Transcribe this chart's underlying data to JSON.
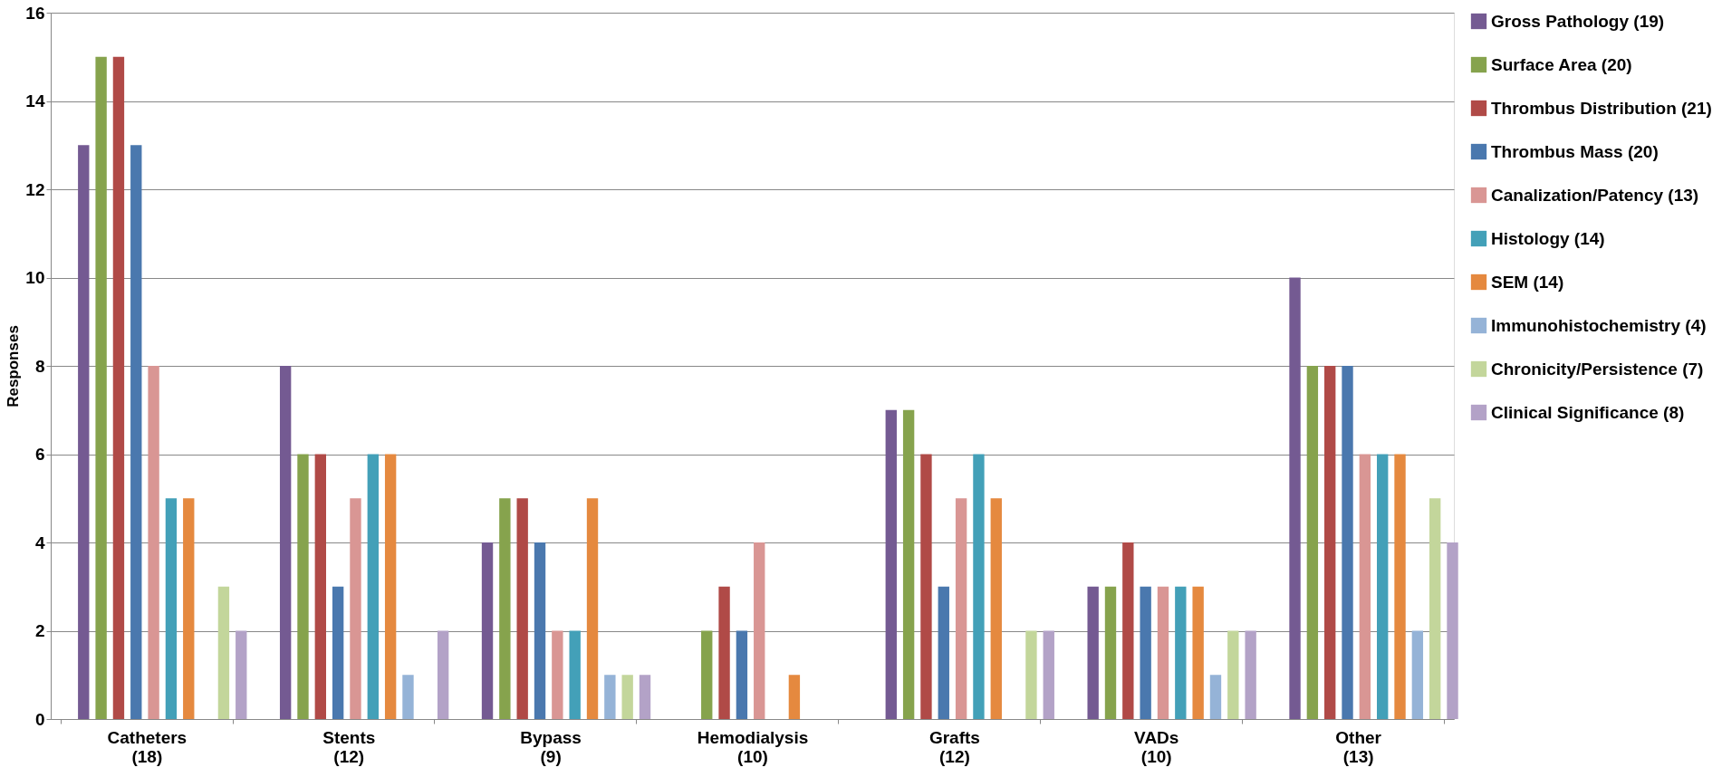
{
  "chart_data": {
    "type": "bar",
    "ylabel": "Responses",
    "categories": [
      "Catheters\n(18)",
      "Stents\n(12)",
      "Bypass\n(9)",
      "Hemodialysis\n(10)",
      "Grafts\n(12)",
      "VADs\n(10)",
      "Other\n(13)"
    ],
    "ylim": [
      0,
      16
    ],
    "yticks": [
      0,
      2,
      4,
      6,
      8,
      10,
      12,
      14,
      16
    ],
    "grid": "y",
    "legend": "right",
    "series": [
      {
        "name": "Gross Pathology (19)",
        "color": "#745a92",
        "values": [
          13,
          8,
          4,
          0,
          7,
          3,
          10
        ]
      },
      {
        "name": "Surface Area (20)",
        "color": "#86a34d",
        "values": [
          15,
          6,
          5,
          2,
          7,
          3,
          8
        ]
      },
      {
        "name": "Thrombus Distribution (21)",
        "color": "#b04a47",
        "values": [
          15,
          6,
          5,
          3,
          6,
          4,
          8
        ]
      },
      {
        "name": "Thrombus Mass (20)",
        "color": "#4a78ae",
        "values": [
          13,
          3,
          4,
          2,
          3,
          3,
          8
        ]
      },
      {
        "name": "Canalization/Patency (13)",
        "color": "#d99694",
        "values": [
          8,
          5,
          2,
          4,
          5,
          3,
          6
        ]
      },
      {
        "name": "Histology (14)",
        "color": "#43a0b8",
        "values": [
          5,
          6,
          2,
          0,
          6,
          3,
          6
        ]
      },
      {
        "name": "SEM (14)",
        "color": "#e5893f",
        "values": [
          5,
          6,
          5,
          1,
          5,
          3,
          6
        ]
      },
      {
        "name": "Immunohistochemistry (4)",
        "color": "#95b3d7",
        "values": [
          0,
          1,
          1,
          0,
          0,
          1,
          2
        ]
      },
      {
        "name": "Chronicity/Persistence (7)",
        "color": "#c3d69b",
        "values": [
          3,
          0,
          1,
          0,
          2,
          2,
          5
        ]
      },
      {
        "name": "Clinical Significance (8)",
        "color": "#b3a2c7",
        "values": [
          2,
          2,
          1,
          0,
          2,
          2,
          4
        ]
      }
    ]
  }
}
